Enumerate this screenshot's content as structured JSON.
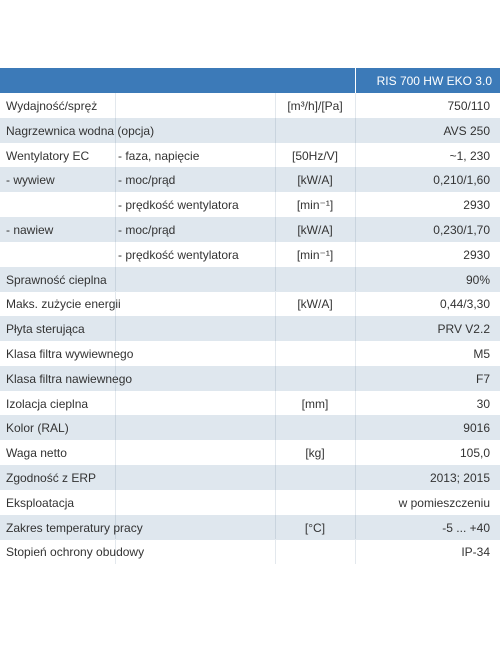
{
  "table": {
    "header": "RIS 700 HW EKO 3.0",
    "rows": [
      [
        "Wydajność/spręż",
        null,
        "[m³/h]/[Pa]",
        "750/110"
      ],
      [
        "Nagrzewnica wodna (opcja)",
        null,
        null,
        "AVS 250"
      ],
      [
        "Wentylatory EC",
        "- faza, napięcie",
        "[50Hz/V]",
        "~1, 230"
      ],
      [
        "- wywiew",
        "- moc/prąd",
        "[kW/A]",
        "0,210/1,60"
      ],
      [
        null,
        "- prędkość wentylatora",
        "[min⁻¹]",
        "2930"
      ],
      [
        "- nawiew",
        "- moc/prąd",
        "[kW/A]",
        "0,230/1,70"
      ],
      [
        null,
        "- prędkość wentylatora",
        "[min⁻¹]",
        "2930"
      ],
      [
        "Sprawność cieplna",
        null,
        null,
        "90%"
      ],
      [
        "Maks. zużycie energii",
        null,
        "[kW/A]",
        "0,44/3,30"
      ],
      [
        "Płyta sterująca",
        null,
        null,
        "PRV V2.2"
      ],
      [
        "Klasa filtra wywiewnego",
        null,
        null,
        "M5"
      ],
      [
        "Klasa filtra nawiewnego",
        null,
        null,
        "F7"
      ],
      [
        "Izolacja cieplna",
        null,
        "[mm]",
        "30"
      ],
      [
        "Kolor (RAL)",
        null,
        null,
        "9016"
      ],
      [
        "Waga netto",
        null,
        "[kg]",
        "105,0"
      ],
      [
        "Zgodność z ERP",
        null,
        null,
        "2013; 2015"
      ],
      [
        "Eksploatacja",
        null,
        null,
        "w pomieszczeniu"
      ],
      [
        "Zakres temperatury pracy",
        null,
        "[°C]",
        "-5 ... +40"
      ],
      [
        "Stopień ochrony obudowy",
        null,
        null,
        "IP-34"
      ]
    ]
  }
}
